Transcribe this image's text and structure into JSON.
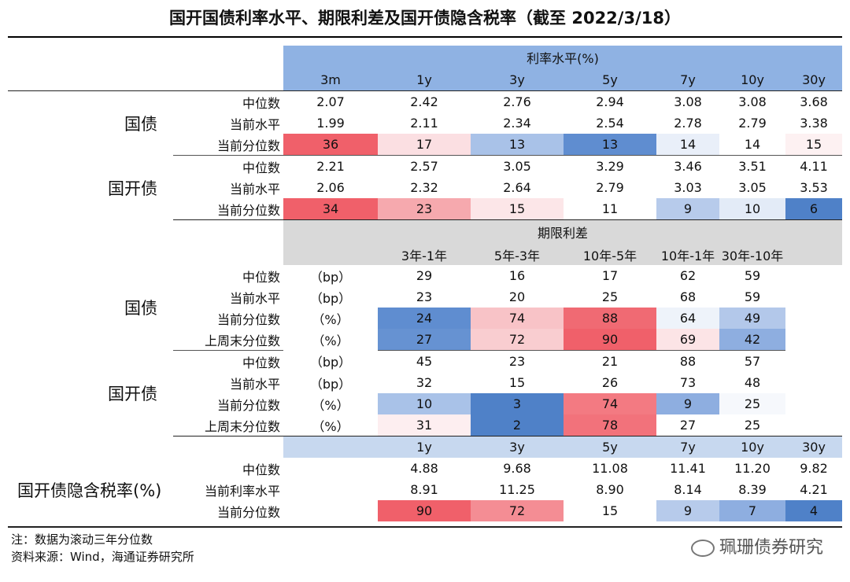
{
  "title": "国开国债利率水平、期限利差及国开债隐含税率（截至 2022/3/18）",
  "colors": {
    "red_strong": "#f0606a",
    "red_mid": "#f5989e",
    "red_light": "#fbdfe2",
    "red_faint": "#fdf1f2",
    "blue_strong": "#4f81c8",
    "blue_mid": "#8eaee0",
    "blue_light": "#c7d6ef",
    "blue_faint": "#e9eff9"
  },
  "rates": {
    "header": "利率水平(%)",
    "cols": [
      "3m",
      "1y",
      "3y",
      "5y",
      "7y",
      "10y",
      "30y"
    ],
    "gz_label": "国债",
    "gk_label": "国开债",
    "row_labels": [
      "中位数",
      "当前水平",
      "当前分位数"
    ],
    "gz": [
      [
        "2.07",
        "2.42",
        "2.76",
        "2.94",
        "3.08",
        "3.08",
        "3.68"
      ],
      [
        "1.99",
        "2.11",
        "2.34",
        "2.54",
        "2.78",
        "2.79",
        "3.38"
      ],
      [
        "36",
        "17",
        "13",
        "13",
        "14",
        "14",
        "15"
      ]
    ],
    "gk": [
      [
        "2.21",
        "2.57",
        "3.05",
        "3.29",
        "3.46",
        "3.51",
        "4.11"
      ],
      [
        "2.06",
        "2.32",
        "2.64",
        "2.79",
        "3.03",
        "3.05",
        "3.53"
      ],
      [
        "34",
        "23",
        "15",
        "11",
        "9",
        "10",
        "6"
      ]
    ]
  },
  "spreads": {
    "header": "期限利差",
    "cols": [
      "3年-1年",
      "5年-3年",
      "10年-5年",
      "10年-1年",
      "30年-10年"
    ],
    "gz_label": "国债",
    "gk_label": "国开债",
    "row_labels": [
      "中位数",
      "当前水平",
      "当前分位数",
      "上周末分位数"
    ],
    "units": [
      "（bp）",
      "（bp）",
      "（%）",
      "（%）"
    ],
    "gz": [
      [
        "29",
        "16",
        "17",
        "62",
        "59"
      ],
      [
        "23",
        "20",
        "25",
        "68",
        "59"
      ],
      [
        "24",
        "74",
        "88",
        "64",
        "49"
      ],
      [
        "27",
        "72",
        "90",
        "69",
        "42"
      ]
    ],
    "gk": [
      [
        "45",
        "23",
        "21",
        "88",
        "57"
      ],
      [
        "32",
        "15",
        "26",
        "73",
        "48"
      ],
      [
        "10",
        "3",
        "74",
        "9",
        "25"
      ],
      [
        "31",
        "2",
        "78",
        "27",
        "25"
      ]
    ]
  },
  "tax": {
    "label": "国开债隐含税率(%)",
    "cols": [
      "1y",
      "3y",
      "5y",
      "7y",
      "10y",
      "30y"
    ],
    "row_labels": [
      "中位数",
      "当前利率水平",
      "当前分位数"
    ],
    "rows": [
      [
        "4.88",
        "9.68",
        "11.08",
        "11.41",
        "11.20",
        "9.82"
      ],
      [
        "8.91",
        "11.25",
        "8.90",
        "8.14",
        "8.39",
        "4.21"
      ],
      [
        "90",
        "72",
        "15",
        "9",
        "7",
        "4"
      ]
    ]
  },
  "notes": {
    "note": "注：数据为滚动三年分位数",
    "source": "资料来源：Wind，海通证券研究所"
  },
  "watermark": "珮珊债券研究"
}
